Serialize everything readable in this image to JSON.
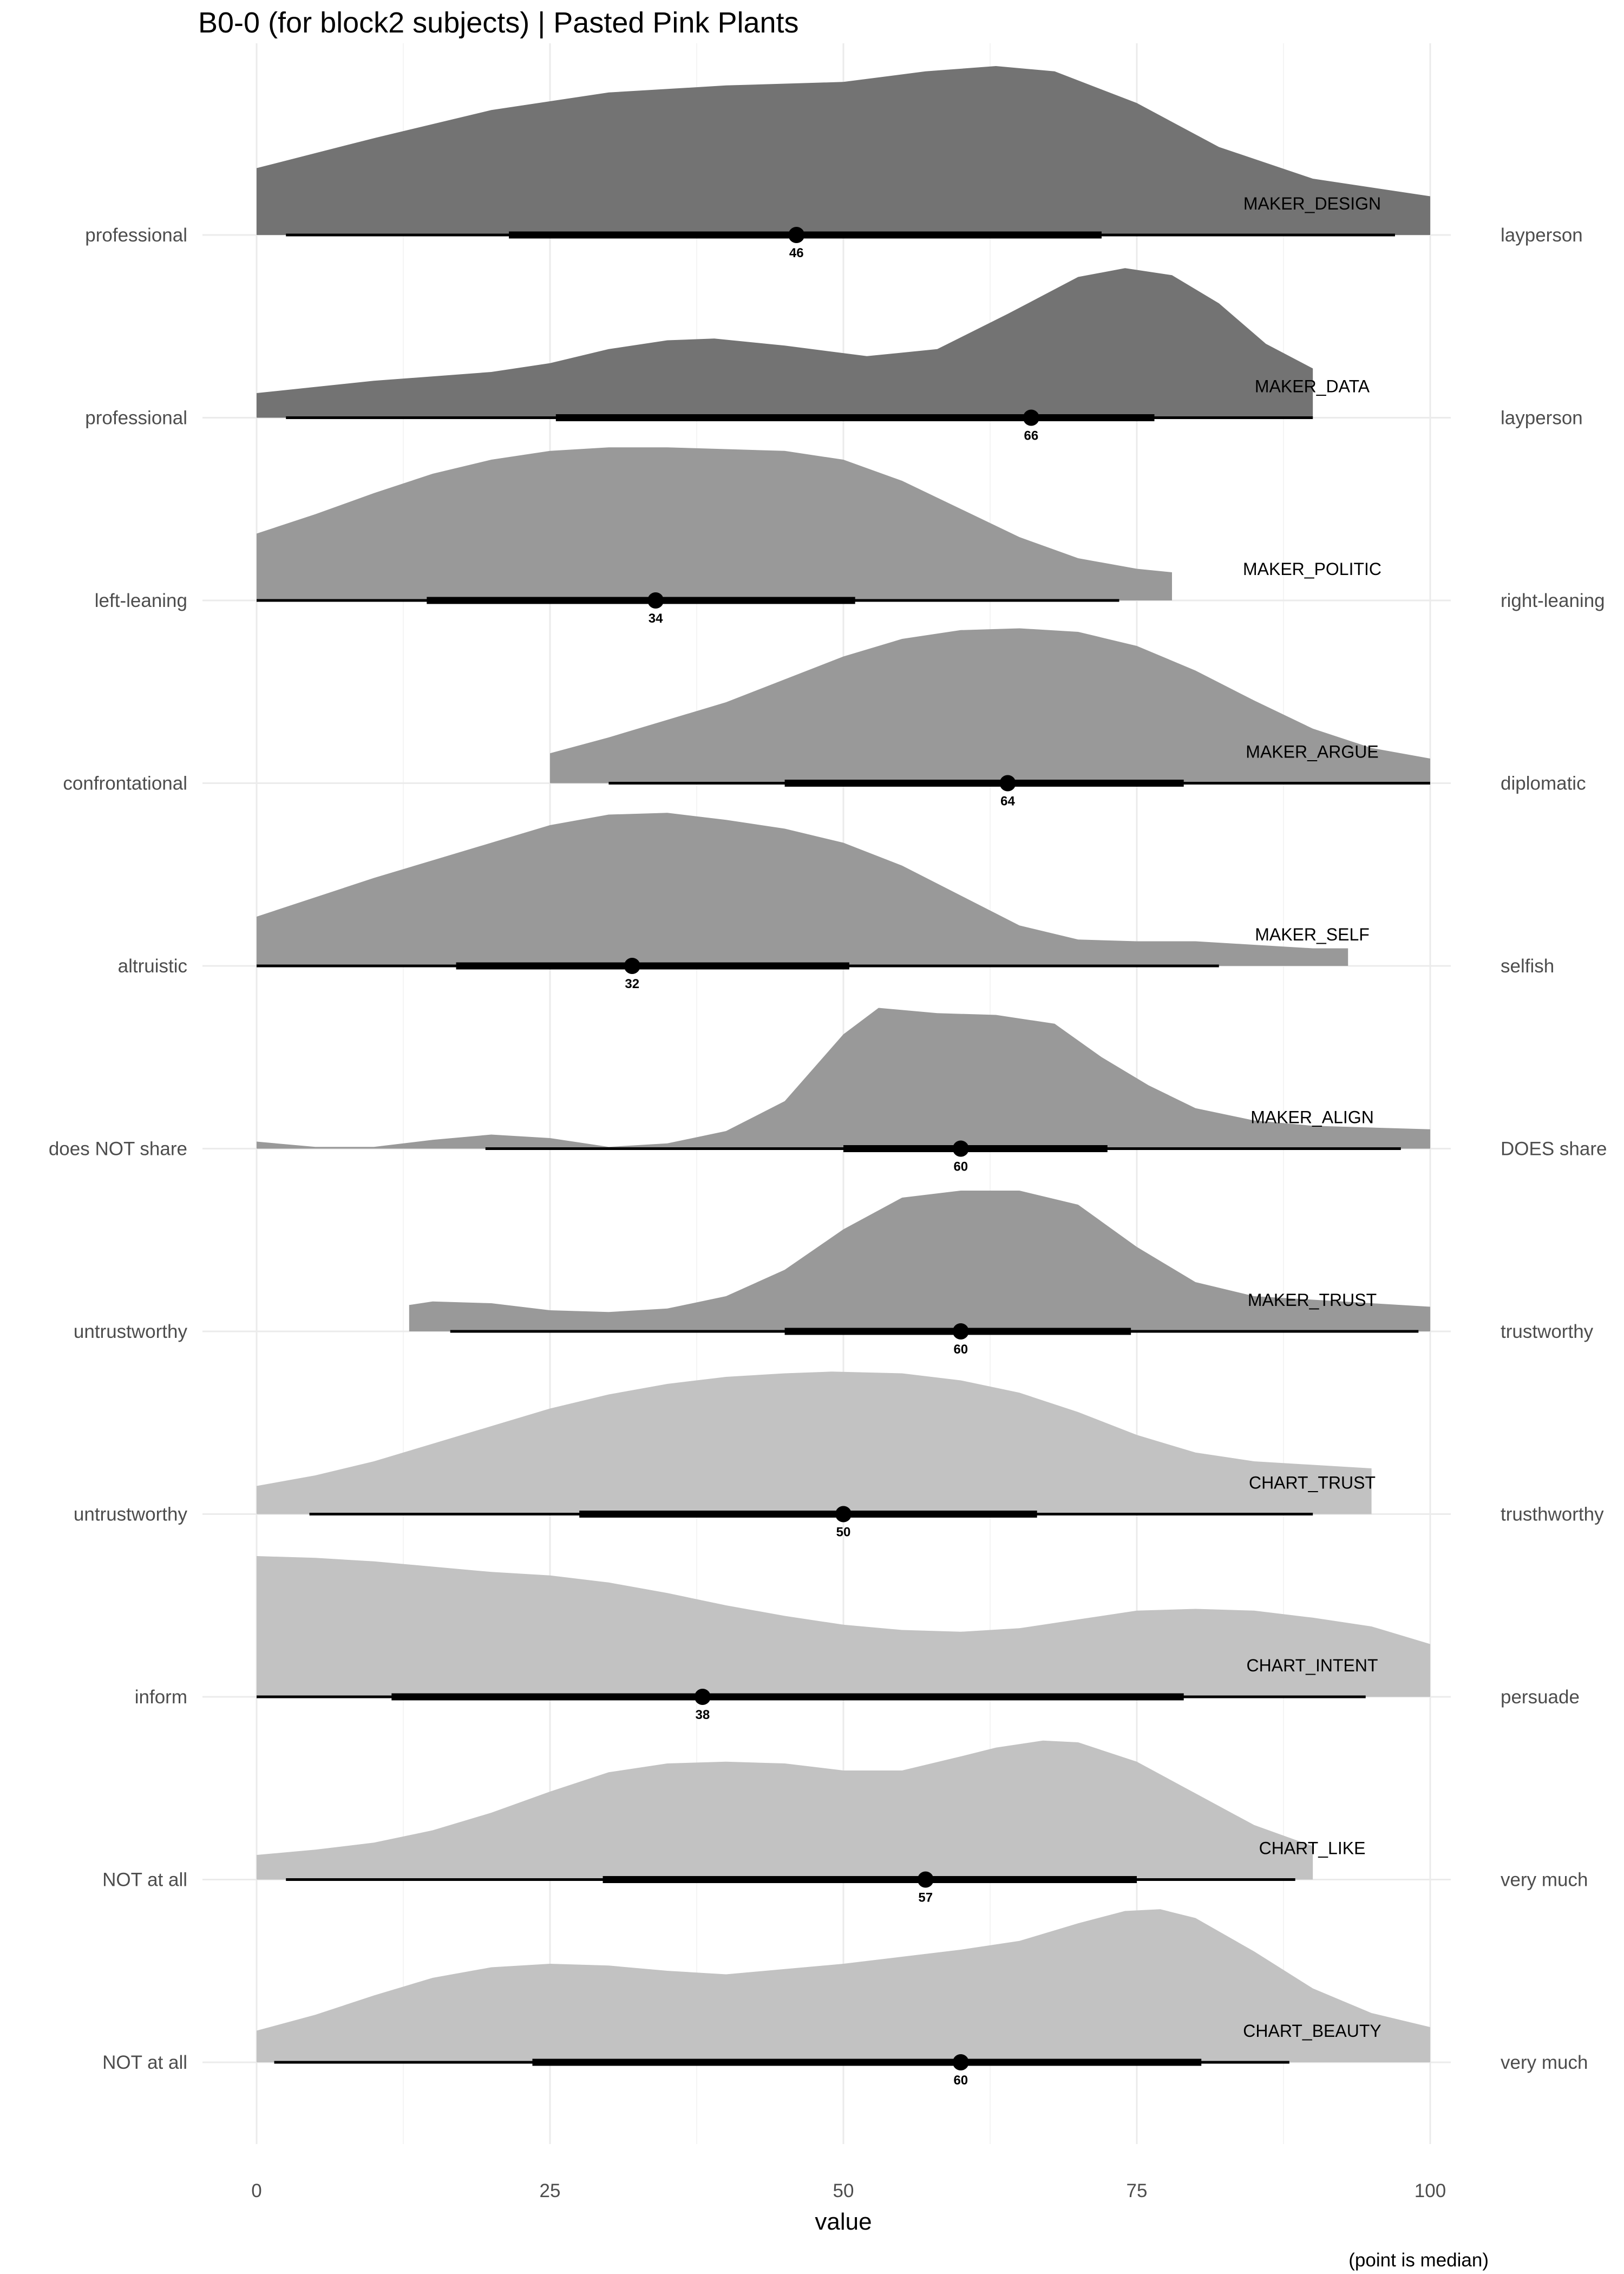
{
  "chart_data": {
    "type": "area",
    "title": "B0-0 (for block2 subjects) | Pasted Pink Plants",
    "xlabel": "value",
    "caption": "(point is median)",
    "xlim": [
      0,
      100
    ],
    "xticks": [
      0,
      25,
      50,
      75,
      100
    ],
    "grid": true,
    "rows": [
      {
        "name": "MAKER_DESIGN",
        "left": "professional",
        "right": "layperson",
        "color": "#737373",
        "median": 46,
        "median_label": "46",
        "interval_66": [
          21.5,
          72
        ],
        "interval_95": [
          2.5,
          97
        ],
        "density": {
          "x": [
            0,
            10,
            20,
            30,
            40,
            50,
            57,
            63,
            68,
            75,
            82,
            90,
            100
          ],
          "y": [
            0.38,
            0.55,
            0.71,
            0.81,
            0.85,
            0.87,
            0.93,
            0.96,
            0.93,
            0.75,
            0.5,
            0.32,
            0.22
          ]
        }
      },
      {
        "name": "MAKER_DATA",
        "left": "professional",
        "right": "layperson",
        "color": "#737373",
        "median": 66,
        "median_label": "66",
        "interval_66": [
          25.5,
          76.5
        ],
        "interval_95": [
          2.5,
          90
        ],
        "density": {
          "x": [
            0,
            10,
            20,
            25,
            30,
            35,
            39,
            45,
            52,
            58,
            64,
            70,
            74,
            78,
            82,
            86,
            90
          ],
          "y": [
            0.14,
            0.21,
            0.26,
            0.31,
            0.39,
            0.44,
            0.45,
            0.41,
            0.35,
            0.39,
            0.59,
            0.8,
            0.85,
            0.81,
            0.65,
            0.42,
            0.28
          ]
        }
      },
      {
        "name": "MAKER_POLITIC",
        "left": "left-leaning",
        "right": "right-leaning",
        "color": "#999999",
        "median": 34,
        "median_label": "34",
        "interval_66": [
          14.5,
          51
        ],
        "interval_95": [
          0,
          73.5
        ],
        "density": {
          "x": [
            0,
            5,
            10,
            15,
            20,
            25,
            30,
            35,
            40,
            45,
            50,
            55,
            60,
            65,
            70,
            75,
            78
          ],
          "y": [
            0.38,
            0.49,
            0.61,
            0.72,
            0.8,
            0.85,
            0.87,
            0.87,
            0.86,
            0.85,
            0.8,
            0.68,
            0.52,
            0.36,
            0.24,
            0.18,
            0.16
          ]
        }
      },
      {
        "name": "MAKER_ARGUE",
        "left": "confrontational",
        "right": "diplomatic",
        "color": "#999999",
        "median": 64,
        "median_label": "64",
        "interval_66": [
          45,
          79
        ],
        "interval_95": [
          30,
          100
        ],
        "density": {
          "x": [
            25,
            30,
            35,
            40,
            45,
            50,
            55,
            60,
            65,
            70,
            75,
            80,
            85,
            90,
            95,
            100
          ],
          "y": [
            0.17,
            0.26,
            0.36,
            0.46,
            0.59,
            0.72,
            0.82,
            0.87,
            0.88,
            0.86,
            0.78,
            0.64,
            0.47,
            0.31,
            0.2,
            0.14
          ]
        }
      },
      {
        "name": "MAKER_SELF",
        "left": "altruistic",
        "right": "selfish",
        "color": "#999999",
        "median": 32,
        "median_label": "32",
        "interval_66": [
          17,
          50.5
        ],
        "interval_95": [
          0,
          82
        ],
        "density": {
          "x": [
            0,
            5,
            10,
            15,
            20,
            25,
            30,
            35,
            40,
            45,
            50,
            55,
            60,
            65,
            70,
            75,
            80,
            85,
            90,
            93
          ],
          "y": [
            0.28,
            0.39,
            0.5,
            0.6,
            0.7,
            0.8,
            0.86,
            0.87,
            0.83,
            0.78,
            0.7,
            0.57,
            0.4,
            0.23,
            0.15,
            0.14,
            0.14,
            0.12,
            0.1,
            0.1
          ]
        }
      },
      {
        "name": "MAKER_ALIGN",
        "left": "does NOT share",
        "right": "DOES share",
        "color": "#999999",
        "median": 60,
        "median_label": "60",
        "interval_66": [
          50,
          72.5
        ],
        "interval_95": [
          19.5,
          97.5
        ],
        "density": {
          "x": [
            0,
            5,
            10,
            15,
            20,
            25,
            30,
            35,
            40,
            45,
            50,
            53,
            58,
            63,
            68,
            72,
            76,
            80,
            85,
            90,
            95,
            100
          ],
          "y": [
            0.04,
            0.01,
            0.01,
            0.05,
            0.08,
            0.06,
            0.01,
            0.03,
            0.1,
            0.27,
            0.65,
            0.8,
            0.77,
            0.76,
            0.71,
            0.52,
            0.36,
            0.23,
            0.16,
            0.13,
            0.12,
            0.11
          ]
        }
      },
      {
        "name": "MAKER_TRUST",
        "left": "untrustworthy",
        "right": "trustworthy",
        "color": "#999999",
        "median": 60,
        "median_label": "60",
        "interval_66": [
          45,
          74.5
        ],
        "interval_95": [
          16.5,
          99
        ],
        "density": {
          "x": [
            13,
            15,
            20,
            25,
            30,
            35,
            40,
            45,
            50,
            55,
            60,
            65,
            70,
            75,
            80,
            85,
            90,
            95,
            100
          ],
          "y": [
            0.15,
            0.17,
            0.16,
            0.12,
            0.11,
            0.13,
            0.2,
            0.35,
            0.58,
            0.76,
            0.8,
            0.8,
            0.72,
            0.48,
            0.28,
            0.2,
            0.18,
            0.16,
            0.14
          ]
        }
      },
      {
        "name": "CHART_TRUST",
        "left": "untrustworthy",
        "right": "trusthworthy",
        "color": "#c2c2c2",
        "median": 50,
        "median_label": "50",
        "interval_66": [
          27.5,
          66.5
        ],
        "interval_95": [
          4.5,
          90
        ],
        "density": {
          "x": [
            0,
            5,
            10,
            15,
            20,
            25,
            30,
            35,
            40,
            45,
            49,
            55,
            60,
            65,
            70,
            75,
            80,
            85,
            90,
            95
          ],
          "y": [
            0.16,
            0.22,
            0.3,
            0.4,
            0.5,
            0.6,
            0.68,
            0.74,
            0.78,
            0.8,
            0.81,
            0.8,
            0.76,
            0.69,
            0.58,
            0.45,
            0.35,
            0.3,
            0.28,
            0.26
          ]
        }
      },
      {
        "name": "CHART_INTENT",
        "left": "inform",
        "right": "persuade",
        "color": "#c2c2c2",
        "median": 38,
        "median_label": "38",
        "interval_66": [
          11.5,
          79
        ],
        "interval_95": [
          0,
          94.5
        ],
        "density": {
          "x": [
            0,
            5,
            10,
            15,
            20,
            25,
            30,
            35,
            40,
            45,
            50,
            55,
            60,
            65,
            70,
            75,
            80,
            85,
            90,
            95,
            100
          ],
          "y": [
            0.8,
            0.79,
            0.77,
            0.74,
            0.71,
            0.69,
            0.65,
            0.59,
            0.52,
            0.46,
            0.41,
            0.38,
            0.37,
            0.39,
            0.44,
            0.49,
            0.5,
            0.49,
            0.45,
            0.4,
            0.3
          ]
        }
      },
      {
        "name": "CHART_LIKE",
        "left": "NOT at all",
        "right": "very much",
        "color": "#c2c2c2",
        "median": 57,
        "median_label": "57",
        "interval_66": [
          29.5,
          75
        ],
        "interval_95": [
          2.5,
          88.5
        ],
        "density": {
          "x": [
            0,
            5,
            10,
            15,
            20,
            25,
            30,
            35,
            40,
            45,
            50,
            55,
            60,
            63,
            67,
            70,
            75,
            80,
            85,
            90
          ],
          "y": [
            0.14,
            0.17,
            0.21,
            0.28,
            0.38,
            0.5,
            0.61,
            0.66,
            0.67,
            0.66,
            0.62,
            0.62,
            0.7,
            0.75,
            0.79,
            0.78,
            0.67,
            0.49,
            0.31,
            0.19
          ]
        }
      },
      {
        "name": "CHART_BEAUTY",
        "left": "NOT at all",
        "right": "very much",
        "color": "#c2c2c2",
        "median": 60,
        "median_label": "60",
        "interval_66": [
          23.5,
          80.5
        ],
        "interval_95": [
          1.5,
          88
        ],
        "density": {
          "x": [
            0,
            5,
            10,
            15,
            20,
            25,
            30,
            35,
            40,
            45,
            50,
            55,
            60,
            65,
            70,
            74,
            77,
            80,
            85,
            90,
            95,
            100
          ],
          "y": [
            0.18,
            0.27,
            0.38,
            0.48,
            0.54,
            0.56,
            0.55,
            0.52,
            0.5,
            0.53,
            0.56,
            0.6,
            0.64,
            0.69,
            0.79,
            0.86,
            0.87,
            0.82,
            0.63,
            0.42,
            0.28,
            0.2
          ]
        }
      }
    ]
  }
}
